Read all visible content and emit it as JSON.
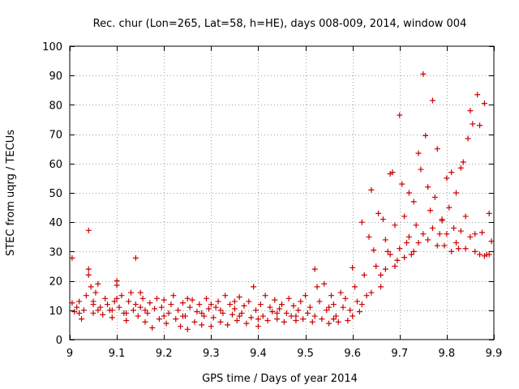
{
  "chart_data": {
    "type": "scatter",
    "title": "Rec. chur (Lon=265, Lat=58, h=HE), days 008-009, 2014, window 004",
    "xlabel": "GPS time / Days of year 2014",
    "ylabel": "STEC from uqrg / TECUs",
    "xlim": [
      9.0,
      9.9
    ],
    "ylim": [
      0,
      100
    ],
    "xticks": [
      9.0,
      9.1,
      9.2,
      9.3,
      9.4,
      9.5,
      9.6,
      9.7,
      9.8,
      9.9
    ],
    "xtick_labels": [
      "9",
      "9.1",
      "9.2",
      "9.3",
      "9.4",
      "9.5",
      "9.6",
      "9.7",
      "9.8",
      "9.9"
    ],
    "yticks": [
      0,
      10,
      20,
      30,
      40,
      50,
      60,
      70,
      80,
      90,
      100
    ],
    "ytick_labels": [
      "0",
      "10",
      "20",
      "30",
      "40",
      "50",
      "60",
      "70",
      "80",
      "90",
      "100"
    ],
    "grid": true,
    "marker": "+",
    "color": "#cc0000",
    "series": [
      {
        "name": "STEC",
        "points": [
          [
            9.005,
            27.8
          ],
          [
            9.005,
            12.5
          ],
          [
            9.01,
            9.5
          ],
          [
            9.015,
            11
          ],
          [
            9.02,
            13
          ],
          [
            9.025,
            7
          ],
          [
            9.03,
            10
          ],
          [
            9.035,
            15
          ],
          [
            9.04,
            37.2
          ],
          [
            9.04,
            24
          ],
          [
            9.04,
            22
          ],
          [
            9.045,
            18
          ],
          [
            9.05,
            12
          ],
          [
            9.05,
            9
          ],
          [
            9.055,
            16
          ],
          [
            9.06,
            19
          ],
          [
            9.065,
            11
          ],
          [
            9.07,
            8.5
          ],
          [
            9.075,
            14
          ],
          [
            9.08,
            12
          ],
          [
            9.085,
            10
          ],
          [
            9.09,
            7.5
          ],
          [
            9.095,
            13
          ],
          [
            9.1,
            20
          ],
          [
            9.1,
            18.5
          ],
          [
            9.105,
            11
          ],
          [
            9.11,
            15
          ],
          [
            9.115,
            9
          ],
          [
            9.12,
            6.5
          ],
          [
            9.125,
            13
          ],
          [
            9.13,
            16
          ],
          [
            9.135,
            10
          ],
          [
            9.14,
            27.8
          ],
          [
            9.14,
            12
          ],
          [
            9.145,
            8
          ],
          [
            9.15,
            11
          ],
          [
            9.155,
            14
          ],
          [
            9.16,
            6
          ],
          [
            9.165,
            9
          ],
          [
            9.17,
            12.5
          ],
          [
            9.175,
            4
          ],
          [
            9.18,
            10.5
          ],
          [
            9.185,
            14
          ],
          [
            9.19,
            7
          ],
          [
            9.195,
            11
          ],
          [
            9.2,
            13.5
          ],
          [
            9.205,
            5.5
          ],
          [
            9.21,
            9
          ],
          [
            9.215,
            12
          ],
          [
            9.22,
            15
          ],
          [
            9.225,
            7
          ],
          [
            9.23,
            10
          ],
          [
            9.235,
            4.5
          ],
          [
            9.24,
            12.5
          ],
          [
            9.245,
            8
          ],
          [
            9.25,
            3.5
          ],
          [
            9.255,
            11
          ],
          [
            9.26,
            13.5
          ],
          [
            9.265,
            6
          ],
          [
            9.27,
            9.5
          ],
          [
            9.275,
            12
          ],
          [
            9.28,
            5
          ],
          [
            9.285,
            8
          ],
          [
            9.29,
            14
          ],
          [
            9.295,
            10.5
          ],
          [
            9.3,
            4.5
          ],
          [
            9.305,
            7.5
          ],
          [
            9.31,
            11
          ],
          [
            9.315,
            13
          ],
          [
            9.32,
            6
          ],
          [
            9.325,
            9
          ],
          [
            9.33,
            15
          ],
          [
            9.335,
            5
          ],
          [
            9.34,
            12
          ],
          [
            9.345,
            8.5
          ],
          [
            9.35,
            10.5
          ],
          [
            9.355,
            6.5
          ],
          [
            9.36,
            14.5
          ],
          [
            9.365,
            9
          ],
          [
            9.37,
            11.5
          ],
          [
            9.375,
            5.5
          ],
          [
            9.38,
            13
          ],
          [
            9.385,
            7.5
          ],
          [
            9.39,
            18
          ],
          [
            9.395,
            10
          ],
          [
            9.4,
            4.5
          ],
          [
            9.405,
            12
          ],
          [
            9.41,
            8
          ],
          [
            9.415,
            15
          ],
          [
            9.42,
            6.5
          ],
          [
            9.425,
            11
          ],
          [
            9.43,
            9.5
          ],
          [
            9.435,
            13.5
          ],
          [
            9.44,
            7
          ],
          [
            9.445,
            10.5
          ],
          [
            9.45,
            12
          ],
          [
            9.455,
            6
          ],
          [
            9.46,
            9
          ],
          [
            9.465,
            14
          ],
          [
            9.47,
            8
          ],
          [
            9.475,
            11.5
          ],
          [
            9.48,
            6.5
          ],
          [
            9.485,
            10
          ],
          [
            9.49,
            13
          ],
          [
            9.495,
            7
          ],
          [
            9.5,
            15
          ],
          [
            9.505,
            9
          ],
          [
            9.51,
            11
          ],
          [
            9.515,
            6
          ],
          [
            9.52,
            24
          ],
          [
            9.525,
            18
          ],
          [
            9.53,
            13
          ],
          [
            9.535,
            7
          ],
          [
            9.54,
            19
          ],
          [
            9.545,
            10
          ],
          [
            9.55,
            5.5
          ],
          [
            9.555,
            15
          ],
          [
            9.56,
            12
          ],
          [
            9.565,
            8
          ],
          [
            9.57,
            6
          ],
          [
            9.575,
            16
          ],
          [
            9.58,
            11
          ],
          [
            9.585,
            14
          ],
          [
            9.59,
            6.5
          ],
          [
            9.595,
            10
          ],
          [
            9.6,
            24.5
          ],
          [
            9.605,
            18
          ],
          [
            9.61,
            13
          ],
          [
            9.615,
            9.5
          ],
          [
            9.62,
            40
          ],
          [
            9.625,
            22
          ],
          [
            9.63,
            15
          ],
          [
            9.635,
            35
          ],
          [
            9.64,
            51
          ],
          [
            9.645,
            30.5
          ],
          [
            9.65,
            25
          ],
          [
            9.655,
            43
          ],
          [
            9.66,
            18
          ],
          [
            9.665,
            41
          ],
          [
            9.67,
            34
          ],
          [
            9.675,
            30
          ],
          [
            9.68,
            56.5
          ],
          [
            9.685,
            57
          ],
          [
            9.69,
            39
          ],
          [
            9.695,
            27
          ],
          [
            9.7,
            76.5
          ],
          [
            9.705,
            53
          ],
          [
            9.71,
            42
          ],
          [
            9.715,
            33
          ],
          [
            9.72,
            50
          ],
          [
            9.725,
            29
          ],
          [
            9.73,
            47
          ],
          [
            9.735,
            39
          ],
          [
            9.74,
            63.5
          ],
          [
            9.745,
            58
          ],
          [
            9.75,
            90.5
          ],
          [
            9.755,
            69.5
          ],
          [
            9.76,
            52
          ],
          [
            9.765,
            44
          ],
          [
            9.77,
            81.5
          ],
          [
            9.775,
            48.5
          ],
          [
            9.78,
            65
          ],
          [
            9.785,
            36
          ],
          [
            9.79,
            40.5
          ],
          [
            9.795,
            32
          ],
          [
            9.8,
            55
          ],
          [
            9.805,
            45
          ],
          [
            9.81,
            57
          ],
          [
            9.815,
            38
          ],
          [
            9.82,
            50
          ],
          [
            9.825,
            31
          ],
          [
            9.83,
            58.5
          ],
          [
            9.835,
            60.5
          ],
          [
            9.84,
            42
          ],
          [
            9.845,
            68.5
          ],
          [
            9.85,
            78
          ],
          [
            9.855,
            73.5
          ],
          [
            9.86,
            36
          ],
          [
            9.865,
            83.5
          ],
          [
            9.87,
            73
          ],
          [
            9.875,
            36.5
          ],
          [
            9.88,
            80.5
          ],
          [
            9.885,
            29
          ],
          [
            9.89,
            43
          ],
          [
            9.895,
            33.5
          ],
          [
            9.66,
            22
          ],
          [
            9.67,
            24
          ],
          [
            9.68,
            29
          ],
          [
            9.69,
            25
          ],
          [
            9.7,
            31
          ],
          [
            9.71,
            28
          ],
          [
            9.72,
            35
          ],
          [
            9.73,
            30
          ],
          [
            9.74,
            33
          ],
          [
            9.75,
            36
          ],
          [
            9.76,
            34
          ],
          [
            9.77,
            38
          ],
          [
            9.78,
            32
          ],
          [
            9.79,
            41
          ],
          [
            9.8,
            36
          ],
          [
            9.81,
            30
          ],
          [
            9.82,
            33
          ],
          [
            9.83,
            37
          ],
          [
            9.84,
            31
          ],
          [
            9.85,
            35
          ],
          [
            9.86,
            30
          ],
          [
            9.87,
            29
          ],
          [
            9.88,
            28.5
          ],
          [
            9.89,
            29
          ],
          [
            9.02,
            9
          ],
          [
            9.06,
            10
          ],
          [
            9.09,
            10
          ],
          [
            9.12,
            9
          ],
          [
            9.16,
            10
          ],
          [
            9.2,
            8
          ],
          [
            9.24,
            8
          ],
          [
            9.28,
            9
          ],
          [
            9.32,
            10
          ],
          [
            9.36,
            8
          ],
          [
            9.4,
            7
          ],
          [
            9.44,
            9
          ],
          [
            9.48,
            8
          ],
          [
            9.52,
            8
          ],
          [
            9.56,
            7
          ],
          [
            9.6,
            8
          ],
          [
            9.62,
            12
          ],
          [
            9.64,
            16
          ],
          [
            9.15,
            16
          ],
          [
            9.25,
            14
          ],
          [
            9.35,
            13
          ],
          [
            9.45,
            12
          ],
          [
            9.55,
            11
          ],
          [
            9.3,
            12
          ],
          [
            9.1,
            14
          ],
          [
            9.05,
            13
          ]
        ]
      }
    ]
  }
}
